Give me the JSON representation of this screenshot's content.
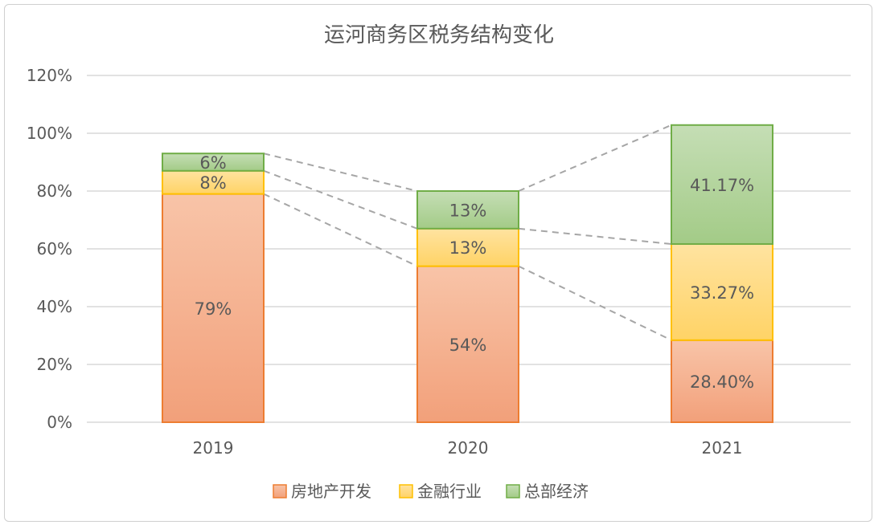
{
  "chart_data": {
    "type": "bar",
    "stacked": true,
    "title": "运河商务区税务结构变化",
    "categories": [
      "2019",
      "2020",
      "2021"
    ],
    "series": [
      {
        "name": "房地产开发",
        "values": [
          79,
          54,
          28.4
        ],
        "labels": [
          "79%",
          "54%",
          "28.40%"
        ],
        "fill_top": "#f8c4a8",
        "fill_bottom": "#f2a07a",
        "stroke": "#ed7d31"
      },
      {
        "name": "金融行业",
        "values": [
          8,
          13,
          33.27
        ],
        "labels": [
          "8%",
          "13%",
          "33.27%"
        ],
        "fill_top": "#ffe3a0",
        "fill_bottom": "#ffd366",
        "stroke": "#ffc000"
      },
      {
        "name": "总部经济",
        "values": [
          6,
          13,
          41.17
        ],
        "labels": [
          "6%",
          "13%",
          "41.17%"
        ],
        "fill_top": "#c5deb5",
        "fill_bottom": "#a3cb87",
        "stroke": "#70ad47"
      }
    ],
    "ylim": [
      0,
      120
    ],
    "yticks": [
      0,
      20,
      40,
      60,
      80,
      100,
      120
    ],
    "ytick_labels": [
      "0%",
      "20%",
      "40%",
      "60%",
      "80%",
      "100%",
      "120%"
    ],
    "grid": true,
    "series_lines": true,
    "legend_position": "bottom"
  }
}
